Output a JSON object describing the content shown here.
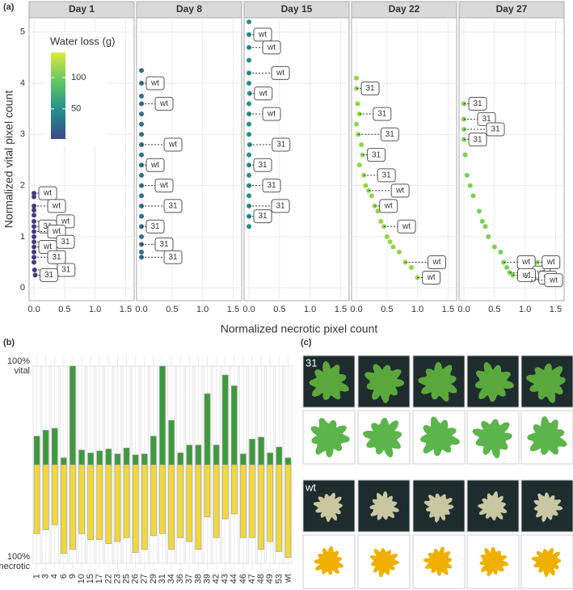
{
  "chart_data": [
    {
      "type": "scatter",
      "panel_label": "(a)",
      "x_label": "Normalized necrotic pixel count",
      "y_label": "Normalized vital pixel count",
      "xlim": [
        -0.08,
        1.64
      ],
      "ylim": [
        -0.25,
        5.28
      ],
      "xticks": [
        {
          "value": 0,
          "label": "0.0"
        },
        {
          "value": 0.5,
          "label": "0.5"
        },
        {
          "value": 1,
          "label": "1.0"
        },
        {
          "value": 1.5,
          "label": "1.5"
        }
      ],
      "yticks": [
        0,
        1,
        2,
        3,
        4,
        5
      ],
      "grid": true,
      "legend": {
        "title": "Water loss (g)",
        "lim": [
          2,
          140
        ],
        "ticks": [
          50,
          100
        ],
        "colors": [
          "#3b4a8c",
          "#21908d",
          "#5ec962",
          "#dde83c"
        ]
      },
      "facets": [
        {
          "title": "Day 1",
          "color": "#433e85",
          "x": [
            0,
            0,
            0,
            0,
            0,
            0,
            0,
            0,
            0,
            0,
            0,
            0,
            0,
            0,
            0.01,
            0.02
          ],
          "y": [
            1.85,
            1.78,
            1.6,
            1.52,
            1.42,
            1.3,
            1.2,
            1.1,
            1.0,
            0.9,
            0.8,
            0.7,
            0.6,
            0.5,
            0.35,
            0.25
          ],
          "labels": [
            "wt",
            null,
            "wt",
            null,
            null,
            "wt",
            "31",
            "wt",
            null,
            "31",
            "wt",
            null,
            "31",
            null,
            "31",
            "31"
          ]
        },
        {
          "title": "Day 8",
          "color": "#2d708e",
          "x": [
            0,
            0,
            0,
            0,
            0,
            0,
            0,
            0,
            0,
            0,
            0,
            0,
            0,
            0,
            0,
            0,
            0,
            0,
            0,
            0
          ],
          "y": [
            4.25,
            4.0,
            3.75,
            3.6,
            3.4,
            3.2,
            3.0,
            2.8,
            2.6,
            2.4,
            2.2,
            2.0,
            1.8,
            1.6,
            1.4,
            1.2,
            1.0,
            0.85,
            0.7,
            0.6
          ],
          "labels": [
            null,
            "wt",
            null,
            "wt",
            null,
            null,
            null,
            "wt",
            null,
            "wt",
            null,
            "wt",
            null,
            "31",
            null,
            "31",
            null,
            "31",
            null,
            "31"
          ]
        },
        {
          "title": "Day 15",
          "color": "#22908c",
          "x": [
            0,
            0,
            0,
            0,
            0,
            0,
            0.01,
            0,
            0,
            0,
            0,
            0.01,
            0,
            0,
            0,
            0,
            0,
            0,
            0,
            0
          ],
          "y": [
            5.2,
            4.95,
            4.7,
            4.45,
            4.2,
            4.0,
            3.8,
            3.6,
            3.4,
            3.2,
            3.0,
            2.8,
            2.6,
            2.4,
            2.2,
            2.0,
            1.8,
            1.6,
            1.4,
            1.2
          ],
          "labels": [
            null,
            "wt",
            "wt",
            null,
            "wt",
            null,
            "wt",
            null,
            "wt",
            null,
            null,
            "31",
            null,
            "31",
            null,
            "31",
            null,
            "31",
            "31",
            null
          ]
        },
        {
          "title": "Day 22",
          "color": "#8fd744",
          "x": [
            0,
            0,
            0.02,
            0.05,
            0,
            0.03,
            0.08,
            0.1,
            0.05,
            0.12,
            0.15,
            0.2,
            0.25,
            0.3,
            0.35,
            0.4,
            0.45,
            0.5,
            0.55,
            0.6,
            0.7,
            0.8,
            0.9,
            1.0
          ],
          "y": [
            4.1,
            3.9,
            3.6,
            3.4,
            3.2,
            3.0,
            2.8,
            2.6,
            2.4,
            2.2,
            2.0,
            1.9,
            1.8,
            1.6,
            1.5,
            1.3,
            1.2,
            1.0,
            0.9,
            0.8,
            0.7,
            0.5,
            0.4,
            0.2
          ],
          "labels": [
            null,
            "31",
            null,
            "31",
            null,
            "31",
            null,
            "31",
            null,
            "31",
            null,
            "wt",
            null,
            "wt",
            null,
            null,
            "wt",
            null,
            null,
            null,
            null,
            "wt",
            null,
            "wt"
          ]
        },
        {
          "title": "Day 27",
          "color": "#7ad151",
          "x": [
            0,
            0,
            0,
            0,
            0.02,
            0.05,
            0.1,
            0.15,
            0.25,
            0.3,
            0.35,
            0.4,
            0.5,
            0.6,
            0.65,
            0.7,
            0.75,
            0.8,
            0.9,
            1.0,
            1.1,
            1.2
          ],
          "y": [
            3.6,
            3.3,
            3.1,
            2.9,
            2.6,
            2.2,
            2.0,
            1.8,
            1.5,
            1.3,
            1.2,
            1.0,
            0.8,
            0.7,
            0.5,
            0.4,
            0.3,
            0.25,
            0.2,
            0.2,
            0.15,
            0.5
          ],
          "labels": [
            "31",
            "31",
            "31",
            "31",
            null,
            null,
            null,
            null,
            null,
            null,
            null,
            null,
            null,
            null,
            "wt",
            null,
            "wt",
            "wt",
            null,
            "wt",
            "wt",
            "wt"
          ]
        }
      ]
    },
    {
      "type": "bar",
      "panel_label": "(b)",
      "categories": [
        "1",
        "3",
        "4",
        "6",
        "9",
        "10",
        "15",
        "17",
        "22",
        "23",
        "25",
        "26",
        "27",
        "29",
        "31",
        "34",
        "36",
        "37",
        "38",
        "39",
        "42",
        "43",
        "44",
        "46",
        "47",
        "48",
        "49",
        "53",
        "wt"
      ],
      "series": [
        {
          "color": "#3d9a3d",
          "values": [
            29,
            35,
            37,
            7,
            100,
            15,
            12,
            14,
            16,
            11,
            17,
            10,
            11,
            29,
            100,
            45,
            12,
            20,
            20,
            72,
            20,
            91,
            80,
            11,
            26,
            28,
            12,
            18,
            7
          ]
        },
        {
          "color": "#f1d83c",
          "values": [
            -70,
            -66,
            -61,
            -90,
            -86,
            -70,
            -76,
            -76,
            -80,
            -78,
            -74,
            -89,
            -86,
            -72,
            -70,
            -86,
            -74,
            -78,
            -86,
            -53,
            -74,
            -55,
            -50,
            -74,
            -74,
            -86,
            -78,
            -88,
            -94
          ]
        }
      ],
      "ylim": [
        -100,
        100
      ],
      "yticks": [
        {
          "value": 100,
          "label": "100%\nvital"
        },
        {
          "value": -100,
          "label": "100%\nnecrotic"
        }
      ],
      "grid": true
    }
  ],
  "images": {
    "panel_label": "(c)",
    "groups": [
      {
        "label": "31"
      },
      {
        "label": "wt"
      }
    ]
  }
}
